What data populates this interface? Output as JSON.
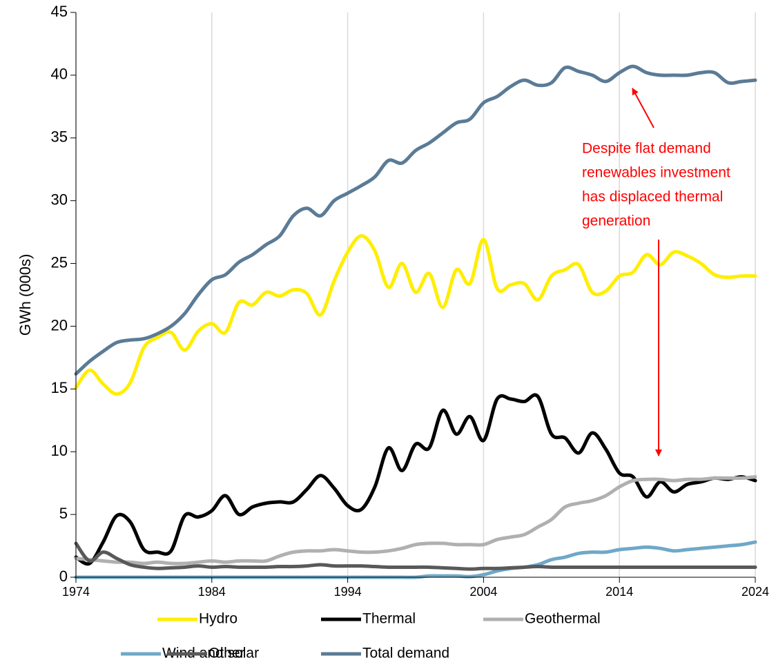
{
  "chart_data": {
    "type": "line",
    "y_axis_label": "GWh (000s)",
    "annotation": [
      "Despite flat demand",
      "renewables investment",
      "has displaced thermal",
      "generation"
    ],
    "x": [
      1974,
      1975,
      1976,
      1977,
      1978,
      1979,
      1980,
      1981,
      1982,
      1983,
      1984,
      1985,
      1986,
      1987,
      1988,
      1989,
      1990,
      1991,
      1992,
      1993,
      1994,
      1995,
      1996,
      1997,
      1998,
      1999,
      2000,
      2001,
      2002,
      2003,
      2004,
      2005,
      2006,
      2007,
      2008,
      2009,
      2010,
      2011,
      2012,
      2013,
      2014,
      2015,
      2016,
      2017,
      2018,
      2019,
      2020,
      2021,
      2022,
      2023,
      2024
    ],
    "xlim": [
      1974,
      2024
    ],
    "xticks": [
      1974,
      1984,
      1994,
      2004,
      2014,
      2024
    ],
    "ylim": [
      0,
      45
    ],
    "yticks": [
      0,
      5,
      10,
      15,
      20,
      25,
      30,
      35,
      40,
      45
    ],
    "grid": true,
    "legend": "bottom",
    "series": [
      {
        "name": "Hydro",
        "color": "#ffee00",
        "values": [
          15.1,
          16.5,
          15.4,
          14.6,
          15.5,
          18.3,
          19.1,
          19.5,
          18.1,
          19.6,
          20.2,
          19.5,
          21.9,
          21.7,
          22.7,
          22.4,
          22.9,
          22.6,
          20.9,
          23.6,
          25.9,
          27.2,
          26.0,
          23.1,
          25.0,
          22.7,
          24.2,
          21.5,
          24.5,
          23.4,
          26.9,
          23.0,
          23.3,
          23.4,
          22.1,
          24.0,
          24.5,
          24.9,
          22.7,
          22.8,
          24.0,
          24.3,
          25.7,
          24.9,
          25.9,
          25.6,
          25.0,
          24.1,
          23.9,
          24.0,
          24.0
        ]
      },
      {
        "name": "Thermal",
        "color": "#000000",
        "values": [
          1.6,
          1.1,
          2.8,
          4.9,
          4.4,
          2.2,
          2.0,
          2.1,
          4.9,
          4.8,
          5.3,
          6.5,
          5.0,
          5.6,
          5.9,
          6.0,
          6.0,
          7.0,
          8.1,
          7.1,
          5.7,
          5.4,
          7.2,
          10.3,
          8.5,
          10.6,
          10.3,
          13.3,
          11.4,
          12.8,
          10.9,
          14.2,
          14.2,
          14.0,
          14.4,
          11.4,
          11.1,
          9.9,
          11.5,
          10.2,
          8.3,
          8.0,
          6.4,
          7.6,
          6.8,
          7.4,
          7.6,
          7.9,
          7.8,
          8.0,
          7.7
        ]
      },
      {
        "name": "Geothermal",
        "color": "#b0b0b0",
        "values": [
          1.5,
          1.4,
          1.3,
          1.2,
          1.2,
          1.1,
          1.2,
          1.1,
          1.1,
          1.2,
          1.3,
          1.2,
          1.3,
          1.3,
          1.3,
          1.7,
          2.0,
          2.1,
          2.1,
          2.2,
          2.1,
          2.0,
          2.0,
          2.1,
          2.3,
          2.6,
          2.7,
          2.7,
          2.6,
          2.6,
          2.6,
          3.0,
          3.2,
          3.4,
          4.0,
          4.6,
          5.6,
          5.9,
          6.1,
          6.5,
          7.2,
          7.7,
          7.8,
          7.8,
          7.7,
          7.8,
          7.8,
          7.9,
          7.9,
          7.9,
          8.0
        ]
      },
      {
        "name": "Wind and solar",
        "color": "#6fa8c8",
        "values": [
          0,
          0,
          0,
          0,
          0,
          0,
          0,
          0,
          0,
          0,
          0,
          0,
          0,
          0,
          0,
          0,
          0,
          0,
          0,
          0,
          0,
          0,
          0,
          0,
          0,
          0,
          0.1,
          0.1,
          0.1,
          0.05,
          0.2,
          0.5,
          0.7,
          0.8,
          1.0,
          1.4,
          1.6,
          1.9,
          2.0,
          2.0,
          2.2,
          2.3,
          2.4,
          2.3,
          2.1,
          2.2,
          2.3,
          2.4,
          2.5,
          2.6,
          2.8
        ]
      },
      {
        "name": "Other",
        "color": "#595959",
        "values": [
          2.7,
          1.3,
          2.0,
          1.5,
          1.0,
          0.8,
          0.7,
          0.75,
          0.8,
          0.9,
          0.8,
          0.85,
          0.8,
          0.8,
          0.8,
          0.85,
          0.85,
          0.9,
          1.0,
          0.9,
          0.9,
          0.9,
          0.85,
          0.8,
          0.8,
          0.8,
          0.8,
          0.75,
          0.7,
          0.65,
          0.7,
          0.7,
          0.75,
          0.8,
          0.85,
          0.8,
          0.8,
          0.8,
          0.8,
          0.8,
          0.8,
          0.8,
          0.8,
          0.8,
          0.8,
          0.8,
          0.8,
          0.8,
          0.8,
          0.8,
          0.8
        ]
      },
      {
        "name": "Total demand",
        "color": "#5b7b96",
        "values": [
          16.2,
          17.2,
          18.0,
          18.7,
          18.9,
          19.0,
          19.4,
          20.0,
          21.0,
          22.5,
          23.7,
          24.1,
          25.1,
          25.7,
          26.5,
          27.2,
          28.8,
          29.4,
          28.8,
          30.0,
          30.6,
          31.2,
          31.9,
          33.2,
          33.0,
          34.0,
          34.6,
          35.4,
          36.2,
          36.5,
          37.8,
          38.3,
          39.1,
          39.6,
          39.2,
          39.4,
          40.6,
          40.3,
          40.0,
          39.5,
          40.2,
          40.7,
          40.2,
          40.0,
          40.0,
          40.0,
          40.2,
          40.2,
          39.4,
          39.5,
          39.6
        ]
      }
    ]
  }
}
